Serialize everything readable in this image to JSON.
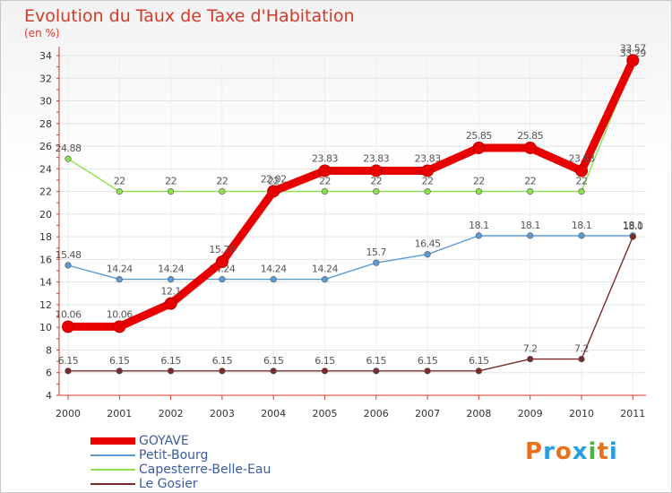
{
  "header": {
    "title": "Evolution du Taux de Taxe d'Habitation",
    "unit": "(en %)"
  },
  "brand": {
    "text": "Proxiti",
    "colors": [
      "#e8721c",
      "#2a9de0",
      "#e8721c",
      "#2a9de0",
      "#49b34a",
      "#e8721c",
      "#2a9de0"
    ]
  },
  "chart_data": {
    "type": "line",
    "title": "Evolution du Taux de Taxe d'Habitation",
    "ylabel": "(en %)",
    "xlabel": "",
    "ylim": [
      4,
      34
    ],
    "yticks": [
      4,
      6,
      8,
      10,
      12,
      14,
      16,
      18,
      20,
      22,
      24,
      26,
      28,
      30,
      32,
      34
    ],
    "categories": [
      "2000",
      "2001",
      "2002",
      "2003",
      "2004",
      "2005",
      "2006",
      "2007",
      "2008",
      "2009",
      "2010",
      "2011"
    ],
    "series": [
      {
        "name": "GOYAVE",
        "color": "#e80000",
        "thick": true,
        "values": [
          10.06,
          10.06,
          12.1,
          15.79,
          22.02,
          23.83,
          23.83,
          23.83,
          25.85,
          25.85,
          23.83,
          33.57
        ],
        "labels": [
          "10.06",
          "10.06",
          "12.1",
          "15.79",
          "22.02",
          "23.83",
          "23.83",
          "23.83",
          "25.85",
          "25.85",
          "23.83",
          "33.57"
        ]
      },
      {
        "name": "Petit-Bourg",
        "color": "#5b9bd5",
        "thick": false,
        "values": [
          15.48,
          14.24,
          14.24,
          14.24,
          14.24,
          14.24,
          15.7,
          16.45,
          18.1,
          18.1,
          18.1,
          18.1
        ],
        "labels": [
          "15.48",
          "14.24",
          "14.24",
          "14.24",
          "14.24",
          "14.24",
          "15.7",
          "16.45",
          "18.1",
          "18.1",
          "18.1",
          "18.1"
        ]
      },
      {
        "name": "Capesterre-Belle-Eau",
        "color": "#8ee04a",
        "thick": false,
        "values": [
          24.88,
          22,
          22,
          22,
          22,
          22,
          22,
          22,
          22,
          22,
          22,
          33.29
        ],
        "labels": [
          "24.88",
          "22",
          "22",
          "22",
          "22",
          "22",
          "22",
          "22",
          "22",
          "22",
          "22",
          "33.29"
        ]
      },
      {
        "name": "Le Gosier",
        "color": "#7a2a2a",
        "thick": false,
        "values": [
          6.15,
          6.15,
          6.15,
          6.15,
          6.15,
          6.15,
          6.15,
          6.15,
          6.15,
          7.2,
          7.2,
          18.0
        ],
        "labels": [
          "6.15",
          "6.15",
          "6.15",
          "6.15",
          "6.15",
          "6.15",
          "6.15",
          "6.15",
          "6.15",
          "7.2",
          "7.2",
          "18.0"
        ]
      }
    ],
    "grid": true,
    "legend_position": "bottom-left"
  }
}
